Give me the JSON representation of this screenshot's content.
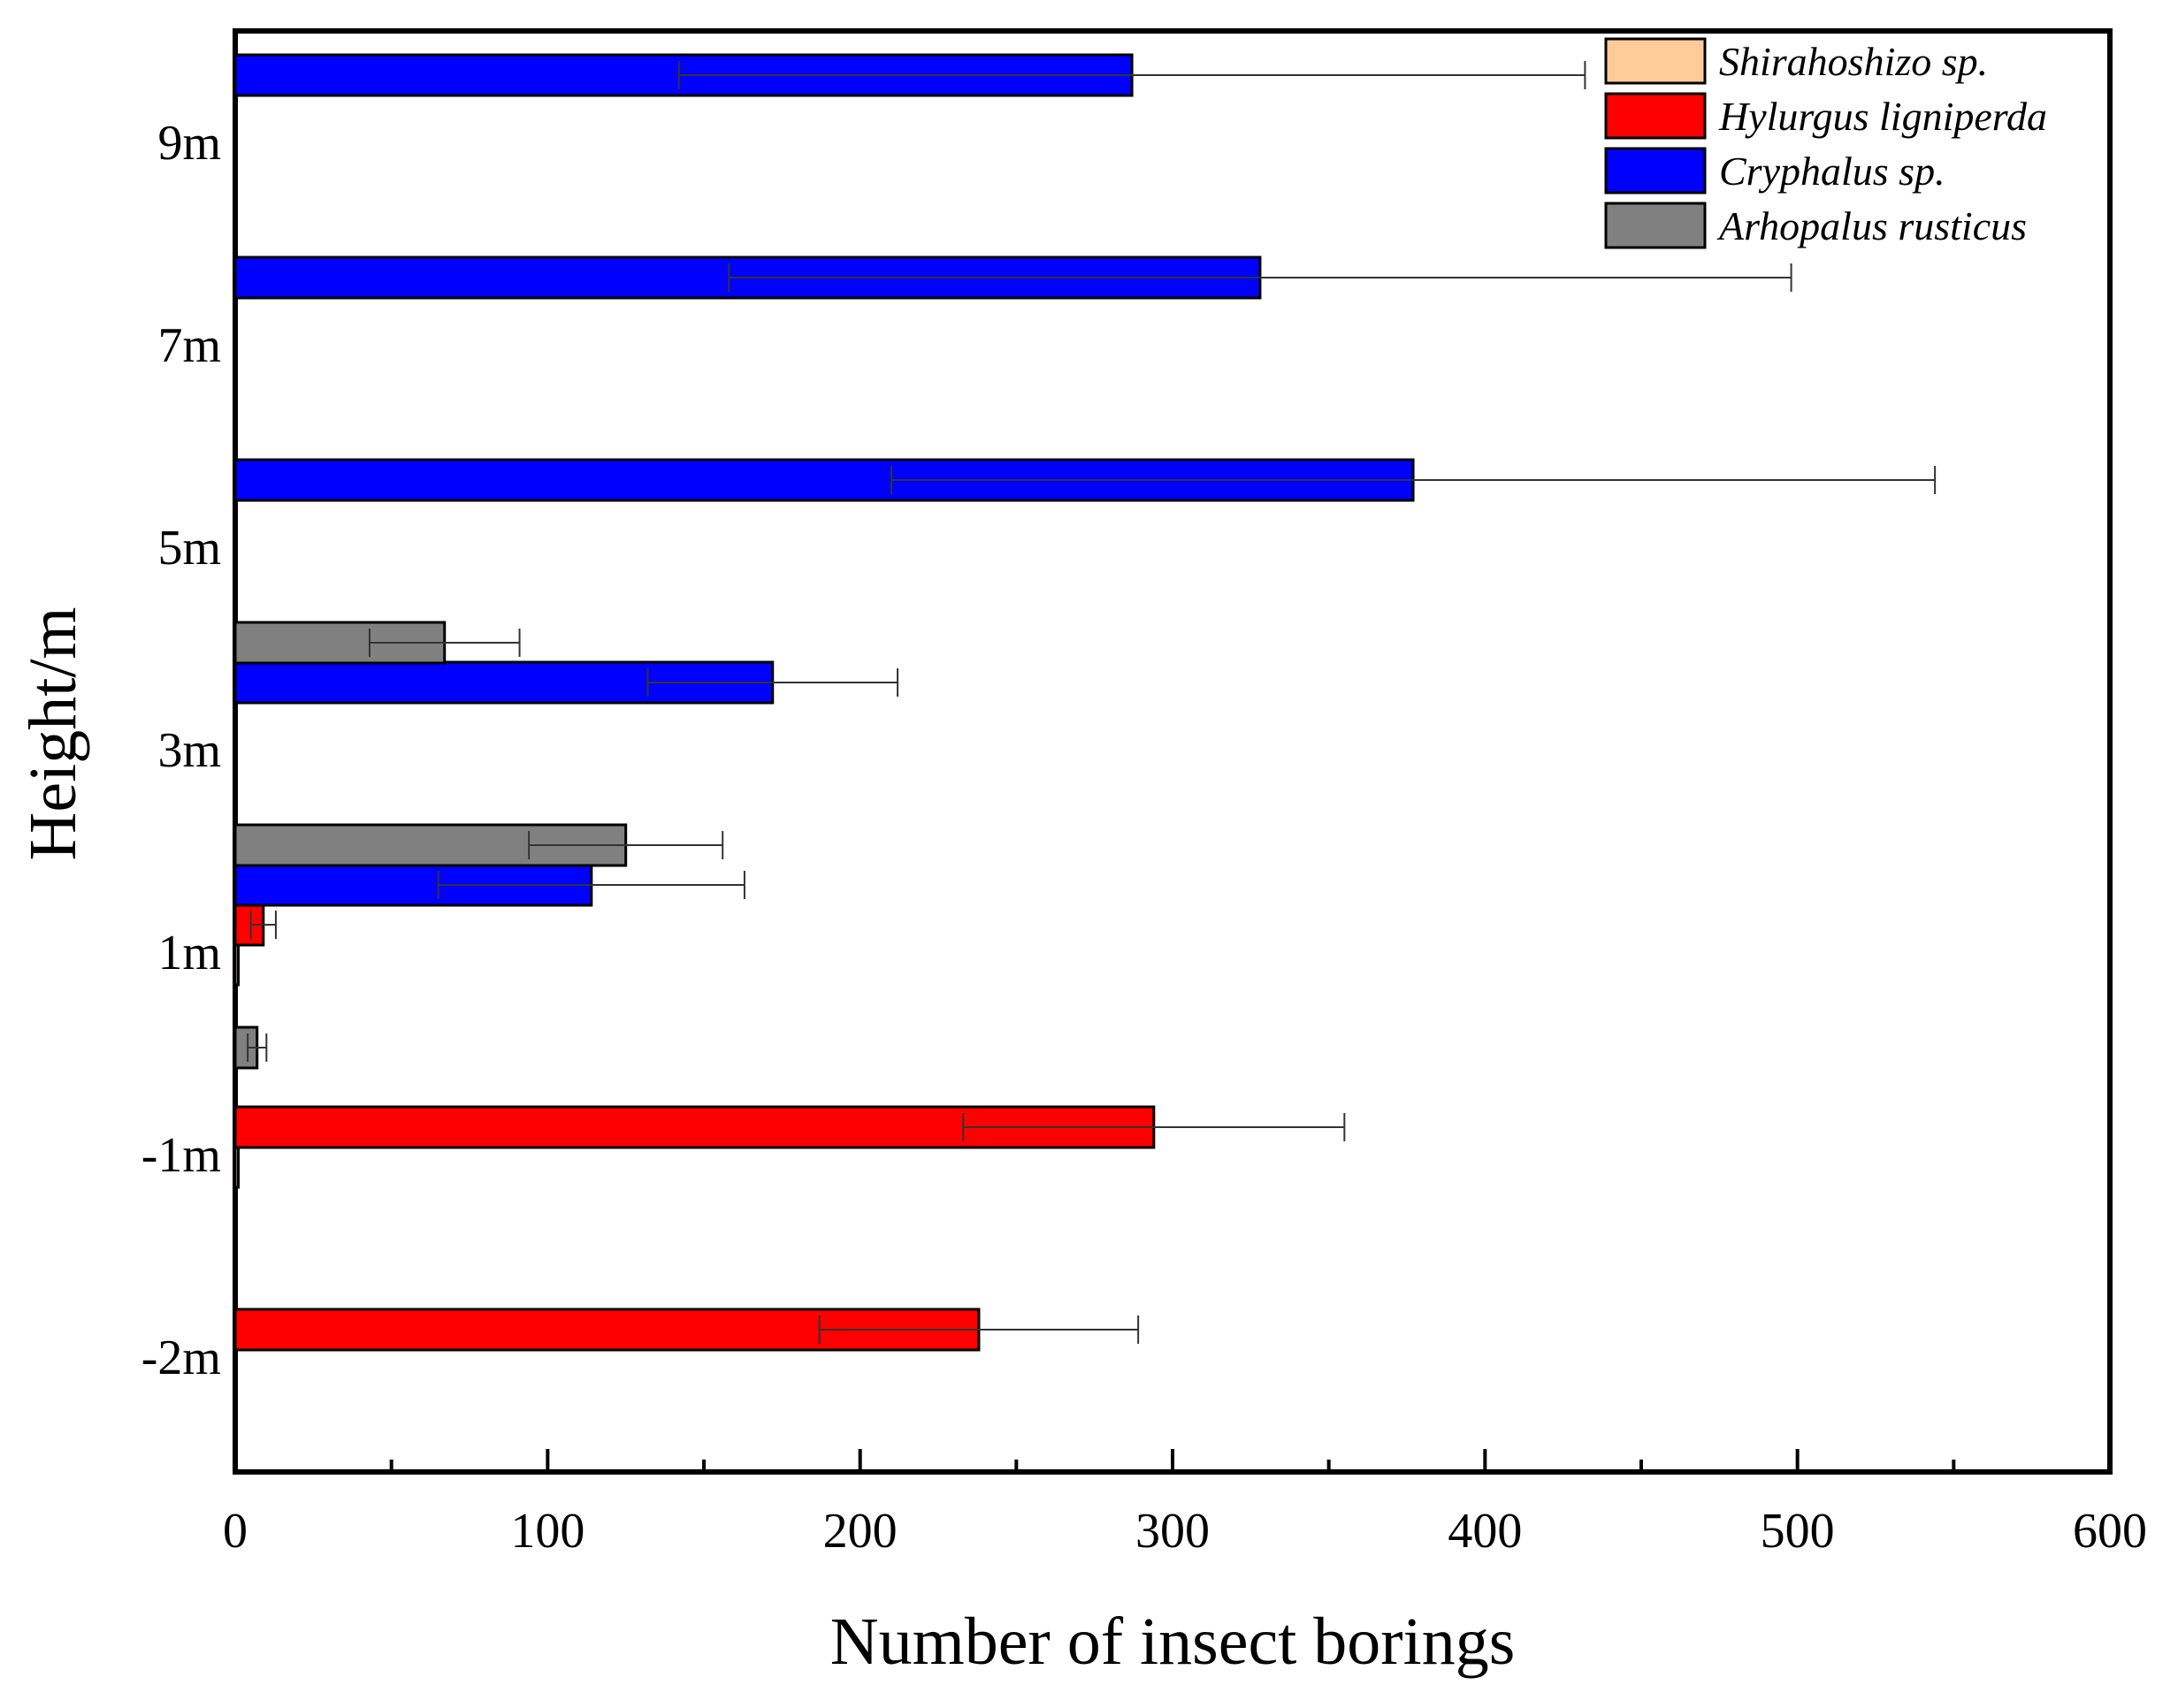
{
  "chart_data": {
    "type": "bar",
    "orientation": "horizontal",
    "title": "",
    "xlabel": "Number of insect borings",
    "ylabel": "Height/m",
    "xlim": [
      0,
      600
    ],
    "xticks": [
      0,
      100,
      200,
      300,
      400,
      500,
      600
    ],
    "grid": false,
    "legend_position": "top-right",
    "categories": [
      "9m",
      "7m",
      "5m",
      "3m",
      "1m",
      "-1m",
      "-2m"
    ],
    "series": [
      {
        "name": "Shirahoshizo sp.",
        "color": "#FFCC99",
        "values": [
          0,
          0,
          0,
          0,
          1,
          1,
          0
        ],
        "errors": [
          0,
          0,
          0,
          0,
          0,
          0,
          0
        ]
      },
      {
        "name": "Hylurgus ligniperda",
        "color": "#FF0000",
        "values": [
          0,
          0,
          0,
          0,
          9,
          294,
          238
        ],
        "errors": [
          0,
          0,
          0,
          0,
          4,
          61,
          51
        ]
      },
      {
        "name": "Cryphalus sp.",
        "color": "#0000FF",
        "values": [
          287,
          328,
          377,
          172,
          114,
          0,
          0
        ],
        "errors": [
          145,
          170,
          167,
          40,
          49,
          0,
          0
        ]
      },
      {
        "name": "Arhopalus rusticus",
        "color": "#808080",
        "values": [
          0,
          0,
          0,
          67,
          125,
          7,
          0
        ],
        "errors": [
          0,
          0,
          0,
          24,
          31,
          3,
          0
        ]
      }
    ]
  }
}
